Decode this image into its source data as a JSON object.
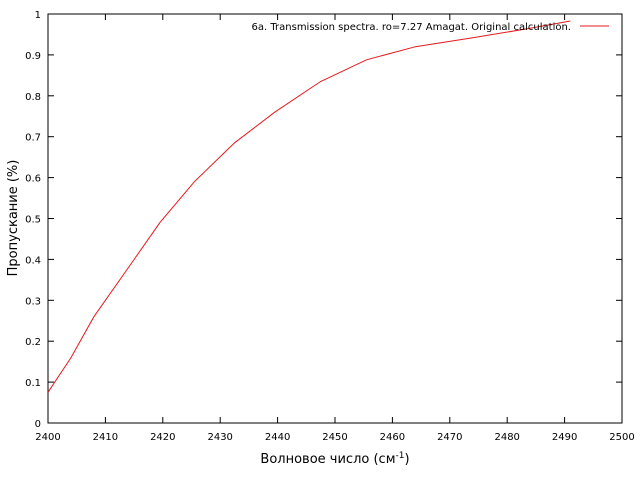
{
  "chart_data": {
    "type": "line",
    "title": "",
    "xlabel": "Волновое число (см",
    "xlabel_superscript": "-1",
    "xlabel_suffix": ")",
    "ylabel": "Пропускание (%)",
    "xlim": [
      2400,
      2500
    ],
    "ylim": [
      0,
      1
    ],
    "xticks": [
      2400,
      2410,
      2420,
      2430,
      2440,
      2450,
      2460,
      2470,
      2480,
      2490,
      2500
    ],
    "yticks": [
      0,
      0.1,
      0.2,
      0.3,
      0.4,
      0.5,
      0.6,
      0.7,
      0.8,
      0.9,
      1
    ],
    "ytick_labels": [
      "0",
      "0.1",
      "0.2",
      "0.3",
      "0.4",
      "0.5",
      "0.6",
      "0.7",
      "0.8",
      "0.9",
      "1"
    ],
    "grid": false,
    "legend_position": "top-right",
    "series": [
      {
        "name": "6a. Transmission spectra. ro=7.27 Amagat. Original calculation.",
        "color": "#e41a1c",
        "x": [
          2400,
          2404,
          2408,
          2414,
          2419.5,
          2425.5,
          2432.5,
          2439.5,
          2447.5,
          2455.5,
          2464,
          2474,
          2484,
          2491
        ],
        "y": [
          0.075,
          0.16,
          0.26,
          0.38,
          0.49,
          0.59,
          0.685,
          0.76,
          0.835,
          0.888,
          0.92,
          0.942,
          0.965,
          0.983
        ]
      }
    ]
  }
}
